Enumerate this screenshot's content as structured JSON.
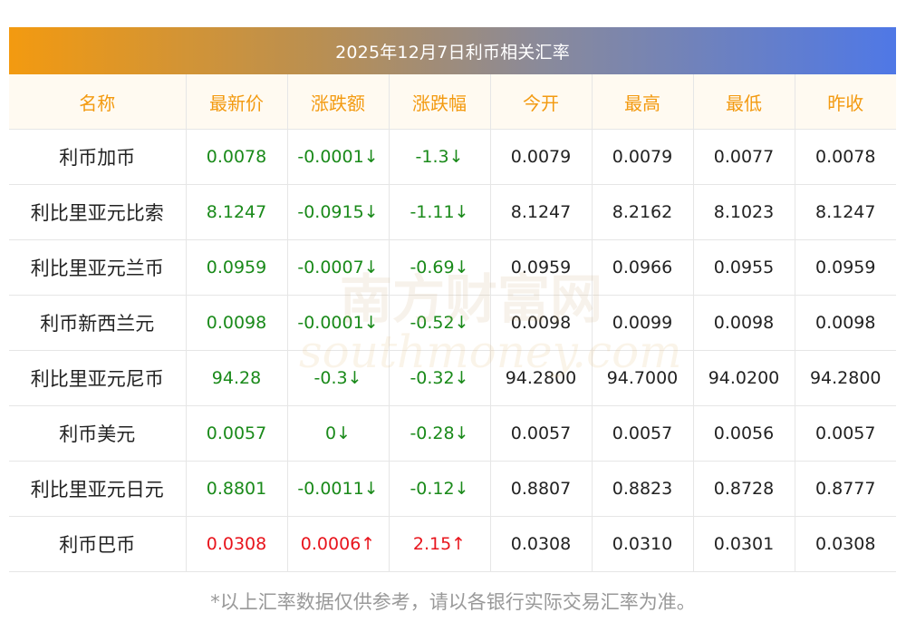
{
  "title": "2025年12月7日利币相关汇率",
  "headers": [
    "名称",
    "最新价",
    "涨跌额",
    "涨跌幅",
    "今开",
    "最高",
    "最低",
    "昨收"
  ],
  "rows": [
    {
      "name": "利币加币",
      "latest": "0.0078",
      "change": "-0.0001↓",
      "pct": "-1.3↓",
      "open": "0.0079",
      "high": "0.0079",
      "low": "0.0077",
      "prev": "0.0078",
      "dir": "down"
    },
    {
      "name": "利比里亚元比索",
      "latest": "8.1247",
      "change": "-0.0915↓",
      "pct": "-1.11↓",
      "open": "8.1247",
      "high": "8.2162",
      "low": "8.1023",
      "prev": "8.1247",
      "dir": "down"
    },
    {
      "name": "利比里亚元兰币",
      "latest": "0.0959",
      "change": "-0.0007↓",
      "pct": "-0.69↓",
      "open": "0.0959",
      "high": "0.0966",
      "low": "0.0955",
      "prev": "0.0959",
      "dir": "down"
    },
    {
      "name": "利币新西兰元",
      "latest": "0.0098",
      "change": "-0.0001↓",
      "pct": "-0.52↓",
      "open": "0.0098",
      "high": "0.0099",
      "low": "0.0098",
      "prev": "0.0098",
      "dir": "down"
    },
    {
      "name": "利比里亚元尼币",
      "latest": "94.28",
      "change": "-0.3↓",
      "pct": "-0.32↓",
      "open": "94.2800",
      "high": "94.7000",
      "low": "94.0200",
      "prev": "94.2800",
      "dir": "down"
    },
    {
      "name": "利币美元",
      "latest": "0.0057",
      "change": "0↓",
      "pct": "-0.28↓",
      "open": "0.0057",
      "high": "0.0057",
      "low": "0.0056",
      "prev": "0.0057",
      "dir": "down"
    },
    {
      "name": "利比里亚元日元",
      "latest": "0.8801",
      "change": "-0.0011↓",
      "pct": "-0.12↓",
      "open": "0.8807",
      "high": "0.8823",
      "low": "0.8728",
      "prev": "0.8777",
      "dir": "down"
    },
    {
      "name": "利币巴币",
      "latest": "0.0308",
      "change": "0.0006↑",
      "pct": "2.15↑",
      "open": "0.0308",
      "high": "0.0310",
      "low": "0.0301",
      "prev": "0.0308",
      "dir": "up"
    }
  ],
  "watermark": {
    "cn": "南方财富网",
    "en": "southmoney.com"
  },
  "footer": "*以上汇率数据仅供参考，请以各银行实际交易汇率为准。",
  "colors": {
    "accent": "#f39a10",
    "up": "#e8141c",
    "down": "#1a8a1a"
  }
}
